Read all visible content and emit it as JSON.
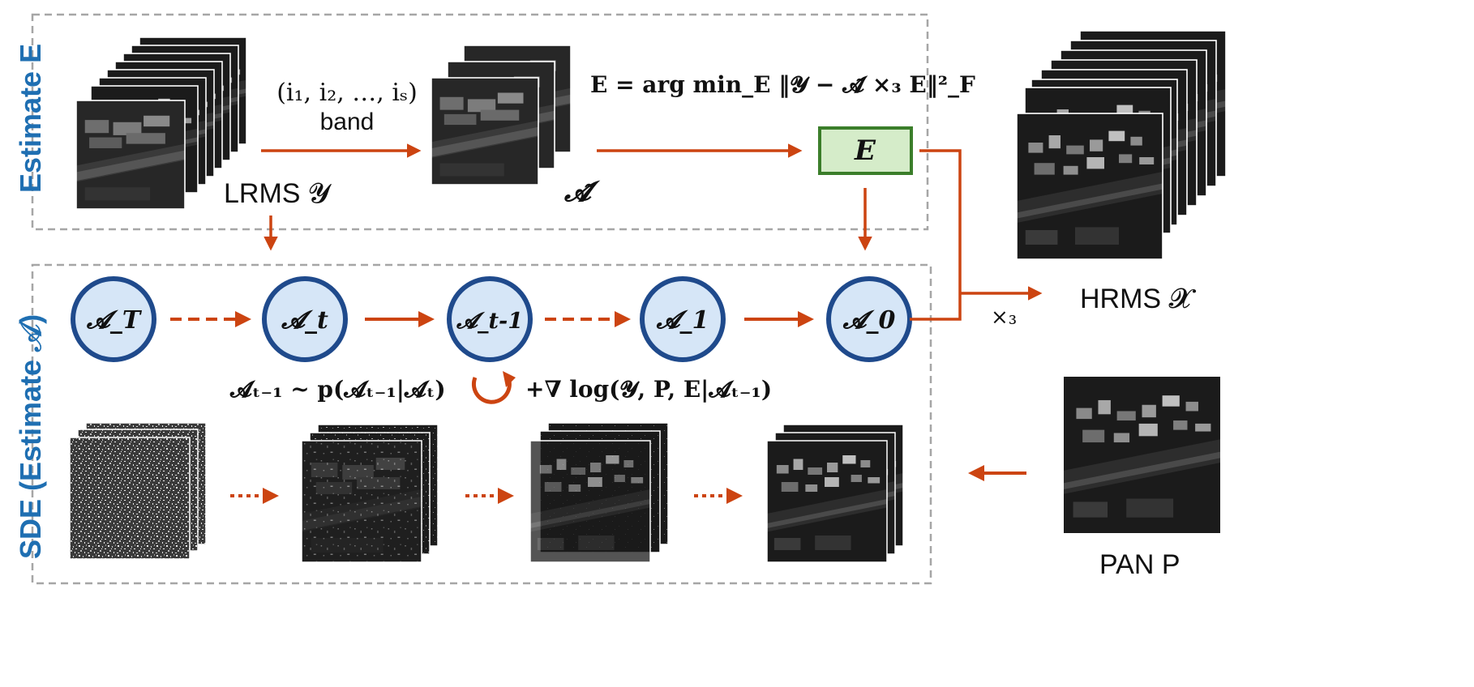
{
  "estimate_panel": {
    "title": "Estimate E",
    "band_indices": "(i₁, i₂, …, iₛ)",
    "band_label": "band",
    "lrms_label": "LRMS 𝓨",
    "a_tilde_label": "𝓐̃",
    "equation": "E = arg min_E ‖𝓨 − 𝓐̃ ×₃ E‖²_F",
    "e_box_label": "E"
  },
  "sde_panel": {
    "title": "SDE (Estimate 𝒜)",
    "states": [
      "𝓐_T",
      "𝓐_t",
      "𝓐_t-1",
      "𝓐_1",
      "𝓐_0"
    ],
    "sampling_formula": "𝓐ₜ₋₁ ~ p(𝓐ₜ₋₁|𝓐ₜ)",
    "guidance_formula": "+∇ log(𝓨, P, E|𝓐ₜ₋₁)"
  },
  "outputs": {
    "hrms_label": "HRMS 𝓧",
    "mode3_product": "×₃",
    "pan_label": "PAN P"
  },
  "colors": {
    "arrow": "#cc4411",
    "state_fill": "#d6e6f7",
    "state_stroke": "#1f4a8c",
    "e_box_fill": "#d5ecc9",
    "e_box_stroke": "#3b7e2a",
    "panel_border": "#a6a6a6",
    "title": "#1f6fb2"
  }
}
